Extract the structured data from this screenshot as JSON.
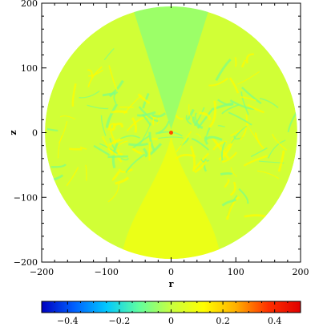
{
  "chart_data": {
    "type": "heatmap",
    "xlabel": "r",
    "ylabel": "z",
    "xlim": [
      -200,
      200
    ],
    "ylim": [
      -200,
      200
    ],
    "x_ticks": [
      -200,
      -100,
      0,
      100,
      200
    ],
    "y_ticks": [
      -200,
      -100,
      0,
      100,
      200
    ],
    "x_tick_labels": [
      "−200",
      "−100",
      "0",
      "100",
      "200"
    ],
    "y_tick_labels": [
      "−200",
      "−100",
      "0",
      "100",
      "200"
    ],
    "domain_radius": 195,
    "background_value": 0.02,
    "features": {
      "upper_cone_value": -0.07,
      "lower_cone_value": 0.09,
      "filament_values": [
        -0.09,
        0.13
      ]
    },
    "colorbar": {
      "range": [
        -0.5,
        0.5
      ],
      "ticks": [
        -0.4,
        -0.2,
        0,
        0.2,
        0.4
      ],
      "tick_labels": [
        "−0.4",
        "−0.2",
        "0",
        "0.2",
        "0.4"
      ],
      "colors": [
        "#0000c0",
        "#0060ff",
        "#00c8ff",
        "#60ffa0",
        "#c8ff40",
        "#ffff00",
        "#ffb000",
        "#ff3000",
        "#e00000"
      ]
    }
  }
}
